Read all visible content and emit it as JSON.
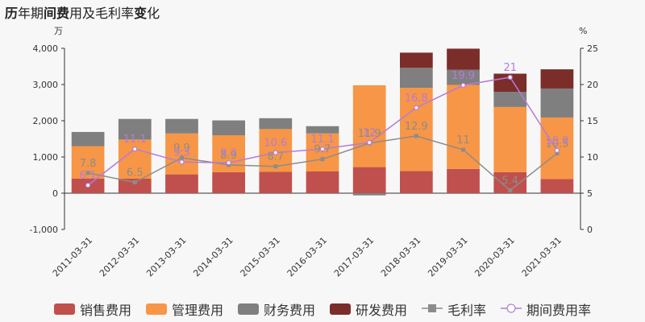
{
  "title_parts": [
    {
      "text": "历",
      "bold": true
    },
    {
      "text": "年期",
      "bold": false
    },
    {
      "text": "间费",
      "bold": true
    },
    {
      "text": "用及毛利率",
      "bold": false
    },
    {
      "text": "变",
      "bold": true
    },
    {
      "text": "化",
      "bold": false
    }
  ],
  "chart_data": {
    "type": "bar",
    "stacked": true,
    "categories": [
      "2011-03-31",
      "2012-03-31",
      "2013-03-31",
      "2014-03-31",
      "2015-03-31",
      "2016-03-31",
      "2017-03-31",
      "2018-03-31",
      "2019-03-31",
      "2020-03-31",
      "2021-03-31"
    ],
    "y_left": {
      "unit": "万",
      "lim": [
        -1000,
        4000
      ],
      "ticks": [
        "-1,000",
        "0",
        "1,000",
        "2,000",
        "3,000",
        "4,000"
      ],
      "tick_values": [
        -1000,
        0,
        1000,
        2000,
        3000,
        4000
      ]
    },
    "y_right": {
      "unit": "%",
      "lim": [
        0,
        25
      ],
      "ticks": [
        "0",
        "5",
        "10",
        "15",
        "20",
        "25"
      ],
      "tick_values": [
        0,
        5,
        10,
        15,
        20,
        25
      ]
    },
    "series": [
      {
        "name": "销售费用",
        "kind": "bar",
        "color": "#c0504d",
        "values": [
          400,
          400,
          520,
          580,
          590,
          600,
          720,
          610,
          670,
          580,
          390
        ]
      },
      {
        "name": "管理费用",
        "kind": "bar",
        "color": "#f79646",
        "values": [
          900,
          1080,
          1130,
          1020,
          1180,
          1050,
          2260,
          2300,
          2320,
          1800,
          1700
        ]
      },
      {
        "name": "财务费用",
        "kind": "bar",
        "color": "#7f7f7f",
        "values": [
          390,
          570,
          400,
          410,
          300,
          200,
          -60,
          550,
          420,
          420,
          800
        ]
      },
      {
        "name": "研发费用",
        "kind": "bar",
        "color": "#7b2d2a",
        "values": [
          0,
          0,
          0,
          0,
          0,
          0,
          0,
          420,
          580,
          500,
          530
        ]
      },
      {
        "name": "毛利率",
        "kind": "line",
        "axis": "right",
        "color": "#8c8c8c",
        "values": [
          7.8,
          6.5,
          9.9,
          8.9,
          8.7,
          9.7,
          11.9,
          12.9,
          11,
          5.4,
          10.5
        ],
        "labels": [
          "7.8",
          "6.5",
          "9.9",
          "8.9",
          "8.7",
          "9.7",
          "11.9",
          "12.9",
          "11",
          "5.4",
          "10.5"
        ]
      },
      {
        "name": "期间费用率",
        "kind": "line",
        "axis": "right",
        "color": "#b57bd8",
        "values": [
          6.1,
          11.1,
          9.3,
          9.2,
          10.6,
          11.1,
          12,
          16.8,
          19.9,
          21,
          10.9
        ],
        "labels": [
          "6.1",
          "11.1",
          "9.3",
          "9.2",
          "10.6",
          "11.1",
          "12",
          "16.8",
          "19.9",
          "21",
          "10.9"
        ]
      }
    ]
  },
  "legend": [
    {
      "label": "销售费用",
      "type": "box",
      "color": "#c0504d"
    },
    {
      "label": "管理费用",
      "type": "box",
      "color": "#f79646"
    },
    {
      "label": "财务费用",
      "type": "box",
      "color": "#7f7f7f"
    },
    {
      "label": "研发费用",
      "type": "box",
      "color": "#7b2d2a"
    },
    {
      "label": "毛利率",
      "type": "line-square",
      "color": "#8c8c8c"
    },
    {
      "label": "期间费用率",
      "type": "line-circle",
      "color": "#b57bd8"
    }
  ]
}
